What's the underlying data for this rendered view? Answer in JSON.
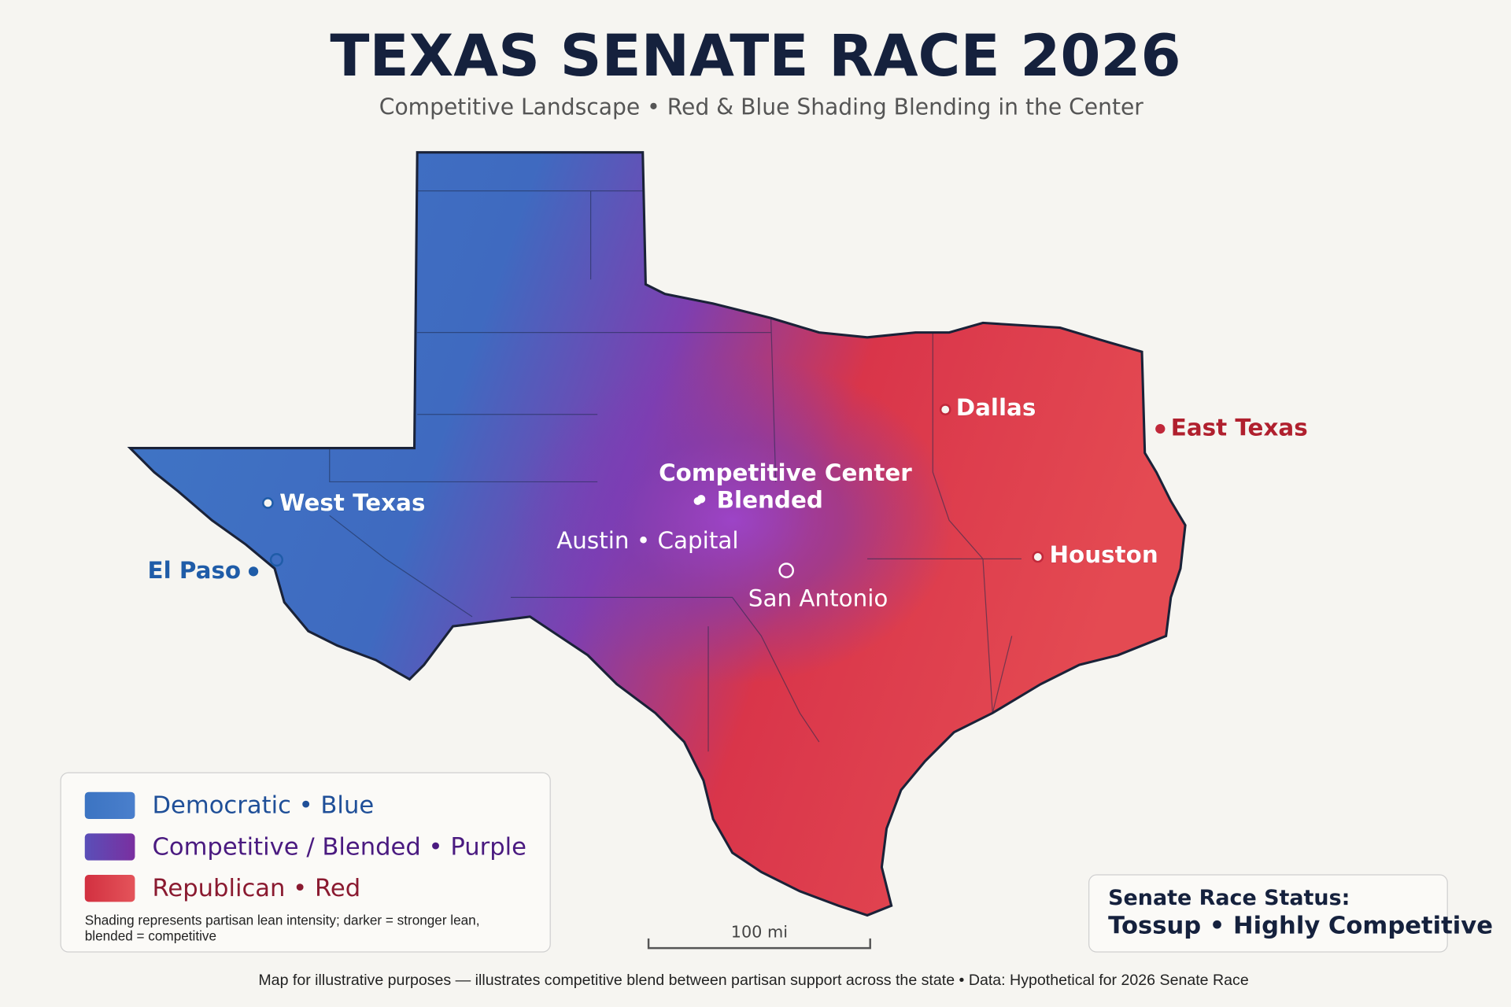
{
  "header": {
    "title": "TEXAS SENATE RACE 2026",
    "subtitle": "Competitive Landscape • Red & Blue Shading Blending in the Center"
  },
  "map": {
    "labels": [
      "West Texas",
      "El Paso",
      "Competitive Center",
      "• Blended",
      "Austin • Capital",
      "San Antonio",
      "Dallas",
      "East Texas",
      "Houston"
    ]
  },
  "legend": {
    "items": [
      "Democratic • Blue",
      "Competitive / Blended • Purple",
      "Republican • Red"
    ],
    "note": "Shading represents partisan lean intensity; darker = stronger lean, blended = competitive"
  },
  "status": {
    "heading": "Senate Race Status:",
    "value": "Tossup • Highly Competitive"
  },
  "scale": {
    "label": "100 mi"
  },
  "footer": "Map for illustrative purposes — illustrates competitive blend between partisan support across the state • Data: Hypothetical for 2026 Senate Race"
}
